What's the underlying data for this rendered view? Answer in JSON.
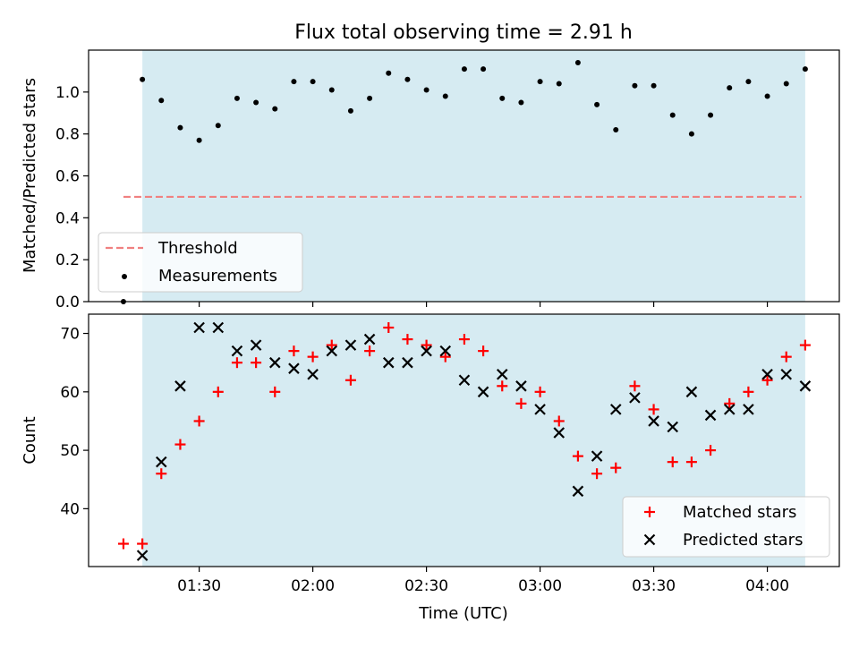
{
  "figure_title": "Flux total observing time = 2.91 h",
  "colors": {
    "shade": "#add8e6",
    "threshold": "#f08080",
    "measurement": "#000000",
    "matched": "#ff0000",
    "predicted": "#000000"
  },
  "chart_data": [
    {
      "type": "scatter",
      "ylabel": "Matched/Predicted stars",
      "xlim_minutes_utc": [
        60.8,
        259.0
      ],
      "ylim": [
        0,
        1.2
      ],
      "yticks": [
        0.0,
        0.2,
        0.4,
        0.6,
        0.8,
        1.0
      ],
      "ytick_labels": [
        "0.0",
        "0.2",
        "0.4",
        "0.6",
        "0.8",
        "1.0"
      ],
      "shaded_span_utc": [
        "01:15",
        "04:10"
      ],
      "threshold": {
        "name": "Threshold",
        "value": 0.5,
        "style": "dashed",
        "x_range_utc": [
          "01:10",
          "04:09"
        ]
      },
      "legend": {
        "placement": "lower-left",
        "entries": [
          "Threshold",
          "Measurements"
        ]
      },
      "series": [
        {
          "name": "Measurements",
          "marker": "dot",
          "x": [
            "01:10",
            "01:15",
            "01:20",
            "01:25",
            "01:30",
            "01:35",
            "01:40",
            "01:45",
            "01:50",
            "01:55",
            "02:00",
            "02:05",
            "02:10",
            "02:15",
            "02:20",
            "02:25",
            "02:30",
            "02:35",
            "02:40",
            "02:45",
            "02:50",
            "02:55",
            "03:00",
            "03:05",
            "03:10",
            "03:15",
            "03:20",
            "03:25",
            "03:30",
            "03:35",
            "03:40",
            "03:45",
            "03:50",
            "03:55",
            "04:00",
            "04:05",
            "04:10"
          ],
          "values": [
            0.0,
            1.06,
            0.96,
            0.83,
            0.77,
            0.84,
            0.97,
            0.95,
            0.92,
            1.05,
            1.05,
            1.01,
            0.91,
            0.97,
            1.09,
            1.06,
            1.01,
            0.98,
            1.11,
            1.11,
            0.97,
            0.95,
            1.05,
            1.04,
            1.14,
            0.94,
            0.82,
            1.03,
            1.03,
            0.89,
            0.8,
            0.89,
            1.02,
            1.05,
            0.98,
            1.04,
            1.11
          ]
        }
      ]
    },
    {
      "type": "scatter",
      "xlabel": "Time (UTC)",
      "ylabel": "Count",
      "xlim_minutes_utc": [
        60.8,
        259.0
      ],
      "ylim": [
        30.1,
        73.3
      ],
      "yticks": [
        40,
        50,
        60,
        70
      ],
      "ytick_labels": [
        "40",
        "50",
        "60",
        "70"
      ],
      "xtick_labels": [
        "01:30",
        "02:00",
        "02:30",
        "03:00",
        "03:30",
        "04:00"
      ],
      "shaded_span_utc": [
        "01:15",
        "04:10"
      ],
      "legend": {
        "placement": "lower-right",
        "entries": [
          "Matched stars",
          "Predicted stars"
        ]
      },
      "x": [
        "01:10",
        "01:15",
        "01:20",
        "01:25",
        "01:30",
        "01:35",
        "01:40",
        "01:45",
        "01:50",
        "01:55",
        "02:00",
        "02:05",
        "02:10",
        "02:15",
        "02:20",
        "02:25",
        "02:30",
        "02:35",
        "02:40",
        "02:45",
        "02:50",
        "02:55",
        "03:00",
        "03:05",
        "03:10",
        "03:15",
        "03:20",
        "03:25",
        "03:30",
        "03:35",
        "03:40",
        "03:45",
        "03:50",
        "03:55",
        "04:00",
        "04:05",
        "04:10"
      ],
      "series": [
        {
          "name": "Matched stars",
          "marker": "plus",
          "values": [
            34,
            34,
            46,
            51,
            55,
            60,
            65,
            65,
            60,
            67,
            66,
            68,
            62,
            67,
            71,
            69,
            68,
            66,
            69,
            67,
            61,
            58,
            60,
            55,
            49,
            46,
            47,
            61,
            57,
            48,
            48,
            50,
            58,
            60,
            62,
            66,
            68
          ]
        },
        {
          "name": "Predicted stars",
          "marker": "x",
          "values": [
            null,
            32,
            48,
            61,
            71,
            71,
            67,
            68,
            65,
            64,
            63,
            67,
            68,
            69,
            65,
            65,
            67,
            67,
            62,
            60,
            63,
            61,
            57,
            53,
            43,
            49,
            57,
            59,
            55,
            54,
            60,
            56,
            57,
            57,
            63,
            63,
            61
          ]
        }
      ]
    }
  ]
}
